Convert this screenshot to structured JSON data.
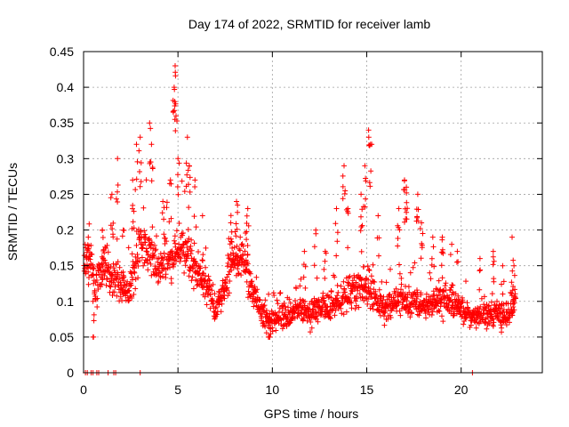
{
  "chart_data": {
    "type": "scatter",
    "title": "Day 174 of 2022, SRMTID for receiver lamb",
    "xlabel": "GPS time / hours",
    "ylabel": "SRMTID / TECUs",
    "xlim": [
      0,
      24.3
    ],
    "ylim": [
      0,
      0.45
    ],
    "x_ticks": [
      0,
      5,
      10,
      15,
      20
    ],
    "y_ticks": [
      0,
      0.05,
      0.1,
      0.15,
      0.2,
      0.25,
      0.3,
      0.35,
      0.4,
      0.45
    ],
    "x_tick_labels": [
      "0",
      "5",
      "10",
      "15",
      "20"
    ],
    "y_tick_labels": [
      "0",
      "0.05",
      "0.1",
      "0.15",
      "0.2",
      "0.25",
      "0.3",
      "0.35",
      "0.4",
      "0.45"
    ],
    "grid": true,
    "marker": "+",
    "series": [
      {
        "name": "SRMTID",
        "color": "#ff0000",
        "trend": [
          [
            0.0,
            0.15
          ],
          [
            0.3,
            0.17
          ],
          [
            0.6,
            0.12
          ],
          [
            0.9,
            0.14
          ],
          [
            1.2,
            0.15
          ],
          [
            1.5,
            0.13
          ],
          [
            1.8,
            0.13
          ],
          [
            2.1,
            0.12
          ],
          [
            2.4,
            0.11
          ],
          [
            2.7,
            0.14
          ],
          [
            3.0,
            0.19
          ],
          [
            3.5,
            0.17
          ],
          [
            4.0,
            0.15
          ],
          [
            4.5,
            0.16
          ],
          [
            5.0,
            0.17
          ],
          [
            5.5,
            0.17
          ],
          [
            6.0,
            0.14
          ],
          [
            6.5,
            0.12
          ],
          [
            7.0,
            0.09
          ],
          [
            7.5,
            0.12
          ],
          [
            8.0,
            0.17
          ],
          [
            8.5,
            0.15
          ],
          [
            9.0,
            0.11
          ],
          [
            9.5,
            0.08
          ],
          [
            10.0,
            0.07
          ],
          [
            10.5,
            0.08
          ],
          [
            11.0,
            0.08
          ],
          [
            11.5,
            0.09
          ],
          [
            12.0,
            0.08
          ],
          [
            12.5,
            0.09
          ],
          [
            13.0,
            0.09
          ],
          [
            13.5,
            0.1
          ],
          [
            14.0,
            0.11
          ],
          [
            14.5,
            0.12
          ],
          [
            15.0,
            0.12
          ],
          [
            15.5,
            0.1
          ],
          [
            16.0,
            0.09
          ],
          [
            16.5,
            0.1
          ],
          [
            17.0,
            0.1
          ],
          [
            17.5,
            0.1
          ],
          [
            18.0,
            0.09
          ],
          [
            18.5,
            0.1
          ],
          [
            19.0,
            0.1
          ],
          [
            19.5,
            0.1
          ],
          [
            20.0,
            0.09
          ],
          [
            20.5,
            0.08
          ],
          [
            21.0,
            0.08
          ],
          [
            21.5,
            0.08
          ],
          [
            22.0,
            0.08
          ],
          [
            22.5,
            0.08
          ],
          [
            22.9,
            0.1
          ]
        ],
        "peaks": [
          [
            0.25,
            0.19
          ],
          [
            0.5,
            0.1
          ],
          [
            1.0,
            0.2
          ],
          [
            1.5,
            0.25
          ],
          [
            1.8,
            0.3
          ],
          [
            2.1,
            0.2
          ],
          [
            2.6,
            0.27
          ],
          [
            2.8,
            0.32
          ],
          [
            3.0,
            0.33
          ],
          [
            3.5,
            0.35
          ],
          [
            3.6,
            0.32
          ],
          [
            4.2,
            0.24
          ],
          [
            4.6,
            0.27
          ],
          [
            4.8,
            0.4
          ],
          [
            4.85,
            0.43
          ],
          [
            4.9,
            0.36
          ],
          [
            5.0,
            0.3
          ],
          [
            5.5,
            0.33
          ],
          [
            5.6,
            0.29
          ],
          [
            5.9,
            0.27
          ],
          [
            6.3,
            0.22
          ],
          [
            7.8,
            0.21
          ],
          [
            8.1,
            0.24
          ],
          [
            8.7,
            0.23
          ],
          [
            9.8,
            0.11
          ],
          [
            11.7,
            0.17
          ],
          [
            12.3,
            0.2
          ],
          [
            12.8,
            0.17
          ],
          [
            13.4,
            0.23
          ],
          [
            14.0,
            0.23
          ],
          [
            13.8,
            0.29
          ],
          [
            14.7,
            0.25
          ],
          [
            14.9,
            0.29
          ],
          [
            15.1,
            0.34
          ],
          [
            15.2,
            0.32
          ],
          [
            15.6,
            0.22
          ],
          [
            16.7,
            0.23
          ],
          [
            17.0,
            0.27
          ],
          [
            17.1,
            0.26
          ],
          [
            17.7,
            0.25
          ],
          [
            17.9,
            0.21
          ],
          [
            18.5,
            0.19
          ],
          [
            19.0,
            0.19
          ],
          [
            19.5,
            0.18
          ],
          [
            19.8,
            0.17
          ],
          [
            21.0,
            0.16
          ],
          [
            21.7,
            0.17
          ],
          [
            22.2,
            0.15
          ],
          [
            22.7,
            0.19
          ],
          [
            22.8,
            0.15
          ]
        ],
        "zeros": [
          0.1,
          0.2,
          0.4,
          0.5,
          0.7,
          0.8,
          1.3,
          1.6,
          1.7,
          3.0,
          20.6
        ]
      }
    ]
  }
}
